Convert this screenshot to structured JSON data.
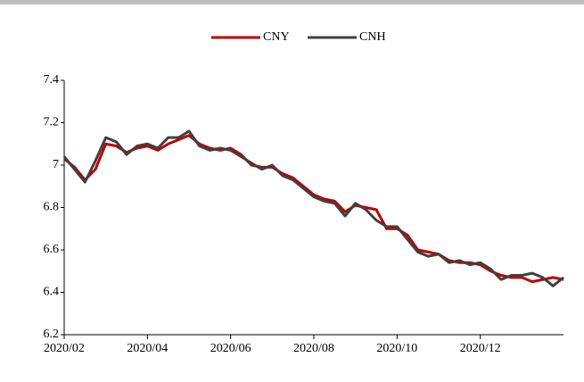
{
  "chart_data": {
    "type": "line",
    "x": [
      0,
      0.25,
      0.5,
      0.75,
      1,
      1.25,
      1.5,
      1.75,
      2,
      2.25,
      2.5,
      2.75,
      3,
      3.25,
      3.5,
      3.75,
      4,
      4.25,
      4.5,
      4.75,
      5,
      5.25,
      5.5,
      5.75,
      6,
      6.25,
      6.5,
      6.75,
      7,
      7.25,
      7.5,
      7.75,
      8,
      8.25,
      8.5,
      8.75,
      9,
      9.25,
      9.5,
      9.75,
      10,
      10.25,
      10.5,
      10.75,
      11,
      11.25,
      11.5,
      11.75,
      12
    ],
    "series": [
      {
        "name": "CNY",
        "color": "#c00000",
        "values": [
          7.03,
          6.99,
          6.93,
          6.98,
          7.1,
          7.09,
          7.06,
          7.08,
          7.09,
          7.07,
          7.1,
          7.12,
          7.14,
          7.1,
          7.08,
          7.07,
          7.08,
          7.05,
          7.0,
          6.99,
          6.99,
          6.96,
          6.94,
          6.9,
          6.86,
          6.84,
          6.83,
          6.78,
          6.81,
          6.8,
          6.79,
          6.7,
          6.7,
          6.67,
          6.6,
          6.59,
          6.58,
          6.55,
          6.54,
          6.54,
          6.53,
          6.5,
          6.48,
          6.47,
          6.47,
          6.45,
          6.46,
          6.47,
          6.46
        ]
      },
      {
        "name": "CNH",
        "color": "#404040",
        "values": [
          7.04,
          6.98,
          6.92,
          7.02,
          7.13,
          7.11,
          7.05,
          7.09,
          7.1,
          7.08,
          7.13,
          7.13,
          7.16,
          7.09,
          7.07,
          7.08,
          7.07,
          7.04,
          7.01,
          6.98,
          7.0,
          6.95,
          6.93,
          6.89,
          6.85,
          6.83,
          6.82,
          6.76,
          6.82,
          6.79,
          6.74,
          6.71,
          6.71,
          6.65,
          6.59,
          6.57,
          6.58,
          6.54,
          6.55,
          6.53,
          6.54,
          6.51,
          6.46,
          6.48,
          6.48,
          6.49,
          6.47,
          6.43,
          6.47
        ]
      }
    ],
    "xlim": [
      0,
      12
    ],
    "xticks": [
      {
        "value": 0,
        "label": "2020/02"
      },
      {
        "value": 2,
        "label": "2020/04"
      },
      {
        "value": 4,
        "label": "2020/06"
      },
      {
        "value": 6,
        "label": "2020/08"
      },
      {
        "value": 8,
        "label": "2020/10"
      },
      {
        "value": 10,
        "label": "2020/12"
      }
    ],
    "ylim": [
      6.2,
      7.4
    ],
    "yticks": [
      6.2,
      6.4,
      6.6,
      6.8,
      7,
      7.2,
      7.4
    ],
    "grid": false
  }
}
